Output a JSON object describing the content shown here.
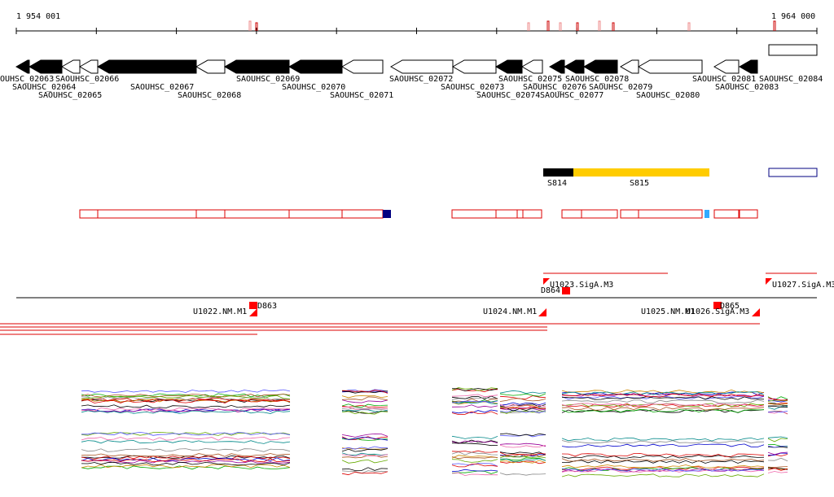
{
  "ruler": {
    "start": "1 954 001",
    "end": "1 964 000"
  },
  "genes": [
    {
      "label": "OUHSC_02063"
    },
    {
      "label": "SAOUHSC_02064"
    },
    {
      "label": "SAOUHSC_02065"
    },
    {
      "label": "SAOUHSC_02066"
    },
    {
      "label": "SAOUHSC_02067"
    },
    {
      "label": "SAOUHSC_02068"
    },
    {
      "label": "SAOUHSC_02069"
    },
    {
      "label": "SAOUHSC_02070"
    },
    {
      "label": "SAOUHSC_02071"
    },
    {
      "label": "SAOUHSC_02072"
    },
    {
      "label": "SAOUHSC_02073"
    },
    {
      "label": "SAOUHSC_02074"
    },
    {
      "label": "SAOUHSC_02075"
    },
    {
      "label": "SAOUHSC_02076"
    },
    {
      "label": "SAOUHSC_02077"
    },
    {
      "label": "SAOUHSC_02078"
    },
    {
      "label": "SAOUHSC_02079"
    },
    {
      "label": "SAOUHSC_02080"
    },
    {
      "label": "SAOUHSC_02081"
    },
    {
      "label": "SAOUHSC_02083"
    },
    {
      "label": "SAOUHSC_02084"
    }
  ],
  "segments": [
    "S814",
    "S815"
  ],
  "features": [
    "D863",
    "U1022.NM.M1",
    "U1023.SigA.M3",
    "D864",
    "U1024.NM.M1",
    "U1025.NM.M1",
    "U1026.SigA.M3",
    "D865",
    "U1027.SigA.M3"
  ]
}
